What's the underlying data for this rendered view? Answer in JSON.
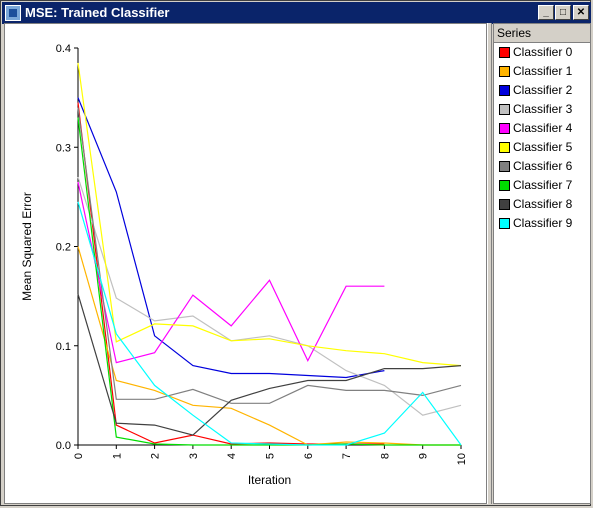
{
  "window": {
    "title": "MSE: Trained Classifier",
    "buttons": {
      "minimize": "_",
      "maximize": "□",
      "close": "✕"
    }
  },
  "legend": {
    "header": "Series",
    "items": [
      {
        "label": "Classifier 0",
        "color": "#ff0000"
      },
      {
        "label": "Classifier 1",
        "color": "#ffb400"
      },
      {
        "label": "Classifier 2",
        "color": "#0000dd"
      },
      {
        "label": "Classifier 3",
        "color": "#c0c0c0"
      },
      {
        "label": "Classifier 4",
        "color": "#ff00ff"
      },
      {
        "label": "Classifier 5",
        "color": "#ffff00"
      },
      {
        "label": "Classifier 6",
        "color": "#808080"
      },
      {
        "label": "Classifier 7",
        "color": "#00dd00"
      },
      {
        "label": "Classifier 8",
        "color": "#404040"
      },
      {
        "label": "Classifier 9",
        "color": "#00ffff"
      }
    ]
  },
  "chart_data": {
    "type": "line",
    "xlabel": "Iteration",
    "ylabel": "Mean Squared Error",
    "xlim": [
      0,
      10
    ],
    "ylim": [
      0,
      0.4
    ],
    "x_ticks": [
      "0",
      "1",
      "2",
      "3",
      "4",
      "5",
      "6",
      "7",
      "8",
      "9",
      "10"
    ],
    "y_ticks": [
      "0.0",
      "0.1",
      "0.2",
      "0.3",
      "0.4"
    ],
    "grid": false,
    "legend_position": "right",
    "series": [
      {
        "name": "Classifier 0",
        "color": "#ff0000",
        "x": [
          0,
          1,
          2,
          3,
          4,
          5,
          6,
          7,
          8
        ],
        "values": [
          0.345,
          0.02,
          0.002,
          0.01,
          0.001,
          0.002,
          0.001,
          0.001,
          0.001
        ]
      },
      {
        "name": "Classifier 1",
        "color": "#ffb400",
        "x": [
          0,
          1,
          2,
          3,
          4,
          5,
          6,
          7,
          8,
          9,
          10
        ],
        "values": [
          0.2,
          0.065,
          0.055,
          0.04,
          0.037,
          0.02,
          0.0,
          0.003,
          0.002,
          0.0,
          0.0
        ]
      },
      {
        "name": "Classifier 2",
        "color": "#0000dd",
        "x": [
          0,
          1,
          2,
          3,
          4,
          5,
          6,
          7,
          8
        ],
        "values": [
          0.35,
          0.255,
          0.11,
          0.08,
          0.072,
          0.072,
          0.07,
          0.068,
          0.075
        ]
      },
      {
        "name": "Classifier 3",
        "color": "#c0c0c0",
        "x": [
          0,
          1,
          2,
          3,
          4,
          5,
          6,
          7,
          8,
          9,
          10
        ],
        "values": [
          0.27,
          0.148,
          0.125,
          0.13,
          0.105,
          0.11,
          0.1,
          0.075,
          0.06,
          0.03,
          0.04
        ]
      },
      {
        "name": "Classifier 4",
        "color": "#ff00ff",
        "x": [
          0,
          1,
          2,
          3,
          4,
          5,
          6,
          7,
          8
        ],
        "values": [
          0.265,
          0.083,
          0.093,
          0.151,
          0.12,
          0.166,
          0.085,
          0.16,
          0.16
        ]
      },
      {
        "name": "Classifier 5",
        "color": "#ffff00",
        "x": [
          0,
          1,
          2,
          3,
          4,
          5,
          6,
          7,
          8,
          9,
          10
        ],
        "values": [
          0.385,
          0.104,
          0.122,
          0.12,
          0.105,
          0.107,
          0.1,
          0.095,
          0.092,
          0.083,
          0.08
        ]
      },
      {
        "name": "Classifier 6",
        "color": "#808080",
        "x": [
          0,
          1,
          2,
          3,
          4,
          5,
          6,
          7,
          8,
          9,
          10
        ],
        "values": [
          0.34,
          0.046,
          0.046,
          0.056,
          0.042,
          0.042,
          0.06,
          0.055,
          0.055,
          0.05,
          0.06
        ]
      },
      {
        "name": "Classifier 7",
        "color": "#00dd00",
        "x": [
          0,
          1,
          2,
          3,
          4,
          5,
          6,
          7,
          8,
          9,
          10
        ],
        "values": [
          0.33,
          0.008,
          0.001,
          0.0,
          0.0,
          0.0,
          0.0,
          0.001,
          0.0,
          0.0,
          0.0
        ]
      },
      {
        "name": "Classifier 8",
        "color": "#404040",
        "x": [
          0,
          1,
          2,
          3,
          4,
          5,
          6,
          7,
          8,
          9,
          10
        ],
        "values": [
          0.152,
          0.022,
          0.02,
          0.01,
          0.045,
          0.057,
          0.065,
          0.065,
          0.077,
          0.077,
          0.08
        ]
      },
      {
        "name": "Classifier 9",
        "color": "#00ffff",
        "x": [
          0,
          1,
          2,
          3,
          4,
          5,
          6,
          7,
          8,
          9,
          10
        ],
        "values": [
          0.245,
          0.112,
          0.06,
          0.03,
          0.002,
          0.001,
          0.0,
          0.0,
          0.012,
          0.053,
          0.0
        ]
      }
    ]
  }
}
